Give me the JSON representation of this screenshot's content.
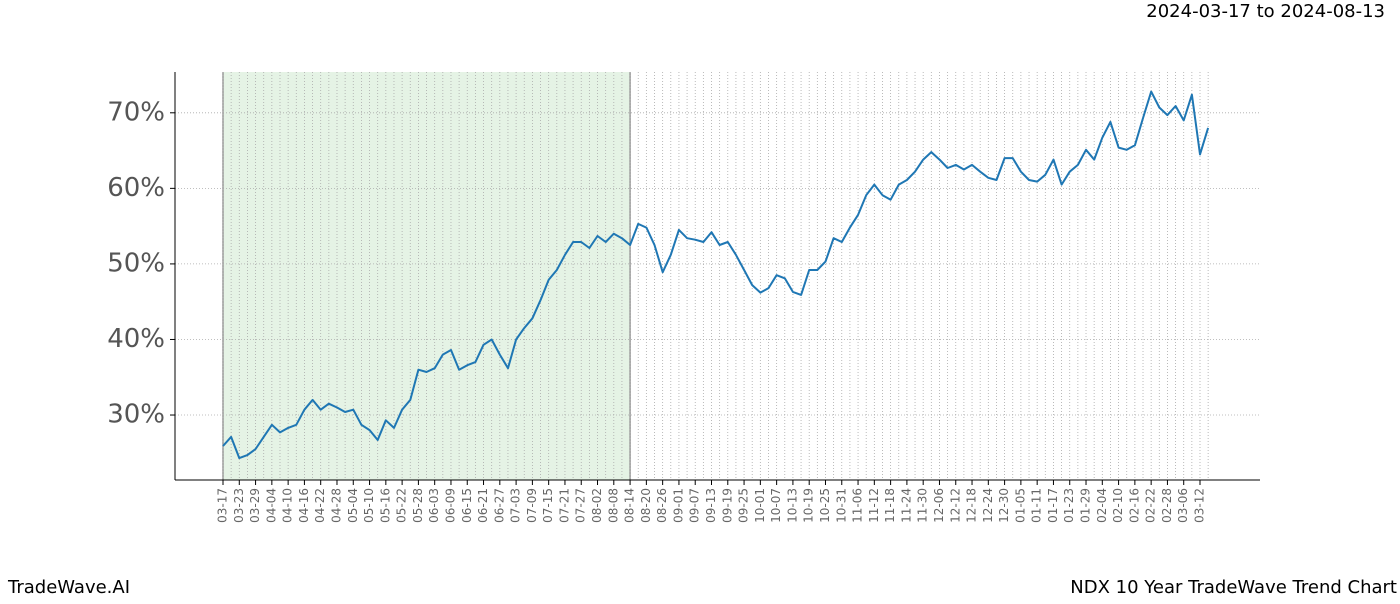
{
  "chart_data": {
    "type": "line",
    "title": "NDX 10 Year TradeWave Trend Chart",
    "subtitle": "2024-03-17 to 2024-08-13",
    "watermark": "TradeWave.AI",
    "color": "#1f77b4",
    "highlight": {
      "from": "03-17",
      "to": "08-14",
      "color": "#2ca02c"
    },
    "grid": true,
    "ylim": [
      21.4,
      75.4
    ],
    "yticks": [
      {
        "value": 30,
        "label": "30%"
      },
      {
        "value": 40,
        "label": "40%"
      },
      {
        "value": 50,
        "label": "50%"
      },
      {
        "value": 60,
        "label": "60%"
      },
      {
        "value": 70,
        "label": "70%"
      }
    ],
    "categories": [
      "03-17",
      null,
      "03-23",
      null,
      "03-29",
      null,
      "04-04",
      null,
      "04-10",
      null,
      "04-16",
      null,
      "04-22",
      null,
      "04-28",
      null,
      "05-04",
      null,
      "05-10",
      null,
      "05-16",
      null,
      "05-22",
      null,
      "05-28",
      null,
      "06-03",
      null,
      "06-09",
      null,
      "06-15",
      null,
      "06-21",
      null,
      "06-27",
      null,
      "07-03",
      null,
      "07-09",
      null,
      "07-15",
      null,
      "07-21",
      null,
      "07-27",
      null,
      "08-02",
      null,
      "08-08",
      null,
      "08-14",
      null,
      "08-20",
      null,
      "08-26",
      null,
      "09-01",
      null,
      "09-07",
      null,
      "09-13",
      null,
      "09-19",
      null,
      "09-25",
      null,
      "10-01",
      null,
      "10-07",
      null,
      "10-13",
      null,
      "10-19",
      null,
      "10-25",
      null,
      "10-31",
      null,
      "11-06",
      null,
      "11-12",
      null,
      "11-18",
      null,
      "11-24",
      null,
      "11-30",
      null,
      "12-06",
      null,
      "12-12",
      null,
      "12-18",
      null,
      "12-24",
      null,
      "12-30",
      null,
      "01-05",
      null,
      "01-11",
      null,
      "01-17",
      null,
      "01-23",
      null,
      "01-29",
      null,
      "02-04",
      null,
      "02-10",
      null,
      "02-16",
      null,
      "02-22",
      null,
      "02-28",
      null,
      "03-06",
      null,
      "03-12",
      null
    ],
    "values": [
      25.9,
      27.1,
      24.3,
      24.7,
      25.5,
      27.1,
      28.7,
      27.7,
      28.3,
      28.7,
      30.7,
      32.0,
      30.7,
      31.5,
      31.0,
      30.4,
      30.7,
      28.7,
      28.0,
      26.7,
      29.3,
      28.3,
      30.7,
      32.0,
      36.0,
      35.7,
      36.2,
      38.0,
      38.6,
      36.0,
      36.6,
      37.0,
      39.3,
      40.0,
      38.0,
      36.2,
      40.0,
      41.5,
      42.8,
      45.2,
      47.9,
      49.2,
      51.2,
      52.9,
      52.9,
      52.1,
      53.7,
      52.9,
      54.0,
      53.4,
      52.5,
      55.3,
      54.8,
      52.5,
      48.9,
      51.2,
      54.5,
      53.4,
      53.2,
      52.9,
      54.2,
      52.5,
      52.9,
      51.2,
      49.2,
      47.2,
      46.2,
      46.8,
      48.5,
      48.1,
      46.3,
      45.9,
      49.2,
      49.2,
      50.3,
      53.4,
      52.9,
      54.8,
      56.5,
      59.1,
      60.5,
      59.1,
      58.5,
      60.5,
      61.1,
      62.2,
      63.8,
      64.8,
      63.8,
      62.7,
      63.1,
      62.5,
      63.1,
      62.2,
      61.4,
      61.1,
      64.0,
      64.0,
      62.2,
      61.1,
      60.9,
      61.8,
      63.8,
      60.5,
      62.2,
      63.1,
      65.1,
      63.8,
      66.7,
      68.8,
      65.4,
      65.1,
      65.7,
      69.3,
      72.8,
      70.7,
      69.7,
      70.9,
      69.0,
      72.4,
      64.5,
      68.0
    ]
  }
}
